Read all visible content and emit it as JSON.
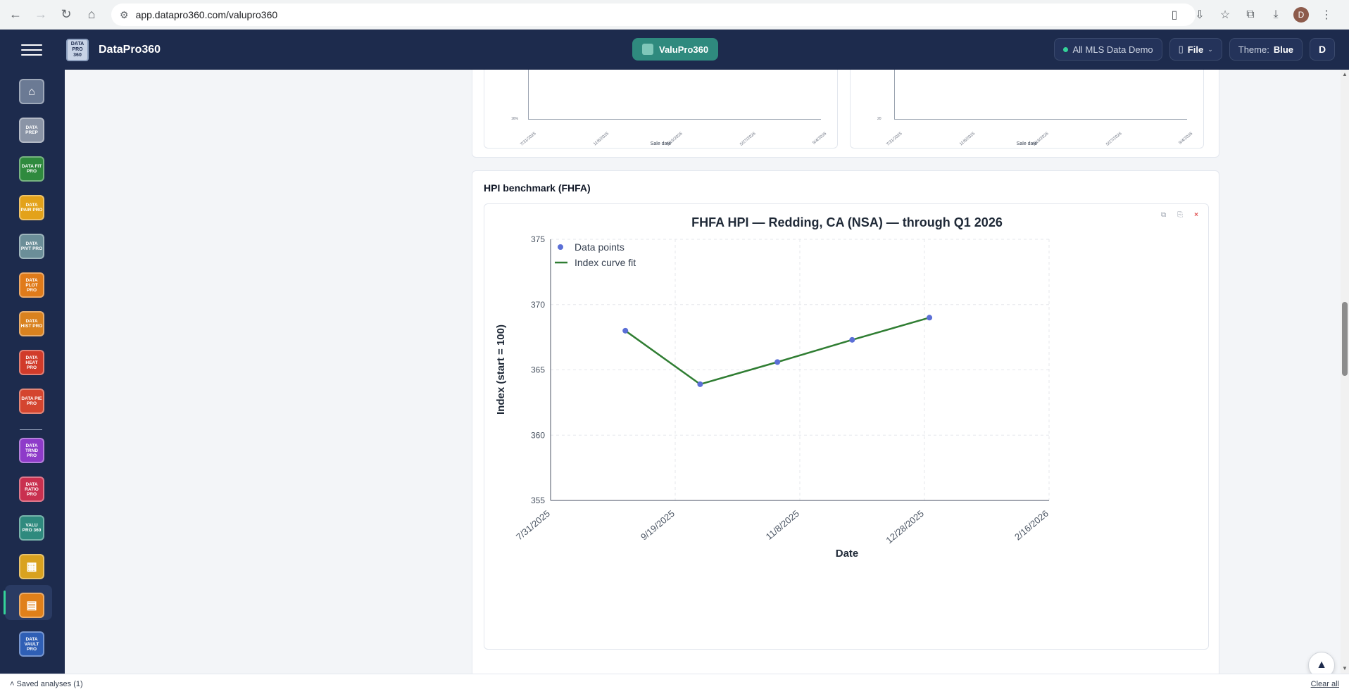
{
  "browser": {
    "url": "app.datapro360.com/valupro360",
    "profile_initial": "D"
  },
  "header": {
    "app_name": "DataPro360",
    "logo_text": "DATA PRO 360",
    "module_pill": "ValuPro360",
    "data_source": "All MLS Data Demo",
    "file_menu": "File",
    "theme_label": "Theme:",
    "theme_value": "Blue",
    "user_initial": "D"
  },
  "sidebar": {
    "items": [
      {
        "label": "",
        "icon": "home-icon",
        "color": "#6b7a94"
      },
      {
        "label": "DATA PREP",
        "color": "#8a94a6"
      },
      {
        "label": "DATA FIT PRO",
        "color": "#2f8a3e"
      },
      {
        "label": "DATA PAIR PRO",
        "color": "#e3a21a"
      },
      {
        "label": "DATA PIVT PRO",
        "color": "#6b8e98"
      },
      {
        "label": "DATA PLOT PRO",
        "color": "#e07b1a"
      },
      {
        "label": "DATA HIST PRO",
        "color": "#d9821f"
      },
      {
        "label": "DATA HEAT PRO",
        "color": "#d13b2a"
      },
      {
        "label": "DATA PIE PRO",
        "color": "#d4452f"
      },
      {
        "label": "DATA TRND PRO",
        "color": "#8e3bc9"
      },
      {
        "label": "DATA RATIO PRO",
        "color": "#c9304f"
      },
      {
        "label": "VALU PRO 360",
        "color": "#2f8a7e"
      },
      {
        "label": "",
        "icon": "table-icon",
        "color": "#d9a21f"
      },
      {
        "label": "",
        "icon": "report-icon",
        "color": "#e0801a"
      },
      {
        "label": "DATA VAULT PRO",
        "color": "#2f5fb5"
      }
    ]
  },
  "top_card": {
    "charts": [
      {
        "y_tick": "16%",
        "x_ticks": [
          "7/31/2025",
          "11/8/2025",
          "2/16/2026",
          "5/27/2026",
          "9/4/2026"
        ],
        "x_label": "Sale date"
      },
      {
        "y_tick": "20",
        "x_ticks": [
          "7/31/2025",
          "11/8/2025",
          "2/16/2026",
          "5/27/2026",
          "9/4/2026"
        ],
        "x_label": "Sale date"
      }
    ]
  },
  "hpi_card": {
    "section_title": "HPI benchmark (FHFA)",
    "tools": {
      "copy": "⧉",
      "save": "⎘",
      "close": "×"
    }
  },
  "chart_data": {
    "type": "line",
    "title": "FHFA HPI — Redding, CA (NSA) — through Q1 2026",
    "xlabel": "Date",
    "ylabel": "Index (start = 100)",
    "ylim": [
      355,
      375
    ],
    "yticks": [
      "355",
      "360",
      "365",
      "370",
      "375"
    ],
    "xlim": [
      "2025-07-31",
      "2026-02-16"
    ],
    "xticks": [
      "7/31/2025",
      "9/19/2025",
      "11/8/2025",
      "12/28/2025",
      "2/16/2026"
    ],
    "grid": true,
    "legend_position": "top-left",
    "series": [
      {
        "name": "Data points",
        "kind": "scatter",
        "color": "#5b6fd6",
        "x": [
          "2025-08-30",
          "2025-09-29",
          "2025-10-30",
          "2025-11-29",
          "2025-12-30"
        ],
        "y": [
          368.0,
          363.9,
          365.6,
          367.3,
          369.0
        ]
      },
      {
        "name": "Index curve fit",
        "kind": "line",
        "color": "#2f7d32",
        "x": [
          "2025-08-30",
          "2025-09-29",
          "2025-10-30",
          "2025-11-29",
          "2025-12-30"
        ],
        "y": [
          368.0,
          363.9,
          365.6,
          367.3,
          369.0
        ]
      }
    ]
  },
  "bottom_bar": {
    "saved_label": "Saved analyses (1)",
    "clear_label": "Clear all"
  }
}
